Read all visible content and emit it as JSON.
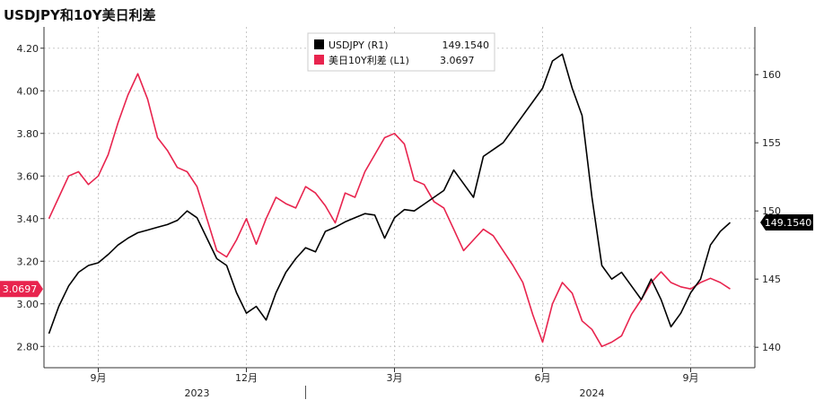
{
  "chart_data": {
    "type": "line",
    "title": "USDJPY和10Y美日利差",
    "y_left": {
      "ylim": [
        2.7,
        4.3
      ],
      "ticks": [
        "2.80",
        "3.00",
        "3.20",
        "3.40",
        "3.60",
        "3.80",
        "4.00",
        "4.20"
      ]
    },
    "y_right": {
      "ylim": [
        138.5,
        163.5
      ],
      "ticks": [
        "140",
        "145",
        "150",
        "155",
        "160"
      ]
    },
    "x_months": [
      {
        "label": "9月",
        "x": 8
      },
      {
        "label": "12月",
        "x": 11
      },
      {
        "label": "3月",
        "x": 14
      },
      {
        "label": "6月",
        "x": 17
      },
      {
        "label": "9月",
        "x": 20
      }
    ],
    "x_years": [
      {
        "label": "2023",
        "x": 10
      },
      {
        "label": "2024",
        "x": 18
      }
    ],
    "x_range": [
      6.9,
      21.3
    ],
    "series": [
      {
        "name": "USDJPY (R1)",
        "axis": "right",
        "color": "#000000",
        "last_value": "149.1540",
        "x": [
          7.0,
          7.2,
          7.4,
          7.6,
          7.8,
          8.0,
          8.2,
          8.4,
          8.6,
          8.8,
          9.0,
          9.2,
          9.4,
          9.6,
          9.8,
          10.0,
          10.2,
          10.4,
          10.6,
          10.8,
          11.0,
          11.2,
          11.4,
          11.6,
          11.8,
          12.0,
          12.2,
          12.4,
          12.6,
          12.8,
          13.0,
          13.2,
          13.4,
          13.6,
          13.8,
          14.0,
          14.2,
          14.4,
          14.6,
          14.8,
          15.0,
          15.2,
          15.4,
          15.6,
          15.8,
          16.0,
          16.2,
          16.4,
          16.6,
          16.8,
          17.0,
          17.2,
          17.4,
          17.6,
          17.8,
          18.0,
          18.2,
          18.4,
          18.6,
          18.8,
          19.0,
          19.2,
          19.4,
          19.6,
          19.8,
          20.0,
          20.2,
          20.4,
          20.6,
          20.8
        ],
        "values": [
          141.0,
          143.0,
          144.5,
          145.5,
          146.0,
          146.2,
          146.8,
          147.5,
          148.0,
          148.4,
          148.6,
          148.8,
          149.0,
          149.3,
          150.0,
          149.5,
          148.0,
          146.5,
          146.0,
          144.0,
          142.5,
          143.0,
          142.0,
          144.0,
          145.5,
          146.5,
          147.3,
          147.0,
          148.5,
          148.8,
          149.2,
          149.5,
          149.8,
          149.7,
          148.0,
          149.5,
          150.1,
          150.0,
          150.5,
          151.0,
          151.5,
          153.0,
          152.0,
          151.0,
          154.0,
          154.5,
          155.0,
          156.0,
          157.0,
          158.0,
          159.0,
          161.0,
          161.5,
          159.0,
          157.0,
          151.0,
          146.0,
          145.0,
          145.5,
          144.5,
          143.5,
          145.0,
          143.5,
          141.5,
          142.5,
          144.0,
          145.0,
          147.5,
          148.5,
          149.154
        ]
      },
      {
        "name": "美日10Y利差 (L1)",
        "axis": "left",
        "color": "#e8244e",
        "last_value": "3.0697",
        "x": [
          7.0,
          7.2,
          7.4,
          7.6,
          7.8,
          8.0,
          8.2,
          8.4,
          8.6,
          8.8,
          9.0,
          9.2,
          9.4,
          9.6,
          9.8,
          10.0,
          10.2,
          10.4,
          10.6,
          10.8,
          11.0,
          11.2,
          11.4,
          11.6,
          11.8,
          12.0,
          12.2,
          12.4,
          12.6,
          12.8,
          13.0,
          13.2,
          13.4,
          13.6,
          13.8,
          14.0,
          14.2,
          14.4,
          14.6,
          14.8,
          15.0,
          15.2,
          15.4,
          15.6,
          15.8,
          16.0,
          16.2,
          16.4,
          16.6,
          16.8,
          17.0,
          17.2,
          17.4,
          17.6,
          17.8,
          18.0,
          18.2,
          18.4,
          18.6,
          18.8,
          19.0,
          19.2,
          19.4,
          19.6,
          19.8,
          20.0,
          20.2,
          20.4,
          20.6,
          20.8
        ],
        "values": [
          3.4,
          3.5,
          3.6,
          3.62,
          3.56,
          3.6,
          3.7,
          3.85,
          3.98,
          4.08,
          3.96,
          3.78,
          3.72,
          3.64,
          3.62,
          3.55,
          3.4,
          3.25,
          3.22,
          3.3,
          3.4,
          3.28,
          3.4,
          3.5,
          3.47,
          3.45,
          3.55,
          3.52,
          3.46,
          3.38,
          3.52,
          3.5,
          3.62,
          3.7,
          3.78,
          3.8,
          3.75,
          3.58,
          3.56,
          3.48,
          3.45,
          3.35,
          3.25,
          3.3,
          3.35,
          3.32,
          3.25,
          3.18,
          3.1,
          2.95,
          2.82,
          3.0,
          3.1,
          3.05,
          2.92,
          2.88,
          2.8,
          2.82,
          2.85,
          2.95,
          3.02,
          3.1,
          3.15,
          3.1,
          3.08,
          3.0697,
          3.1,
          3.12,
          3.1,
          3.0697
        ]
      }
    ],
    "legend": {
      "placement": "top-center"
    }
  }
}
